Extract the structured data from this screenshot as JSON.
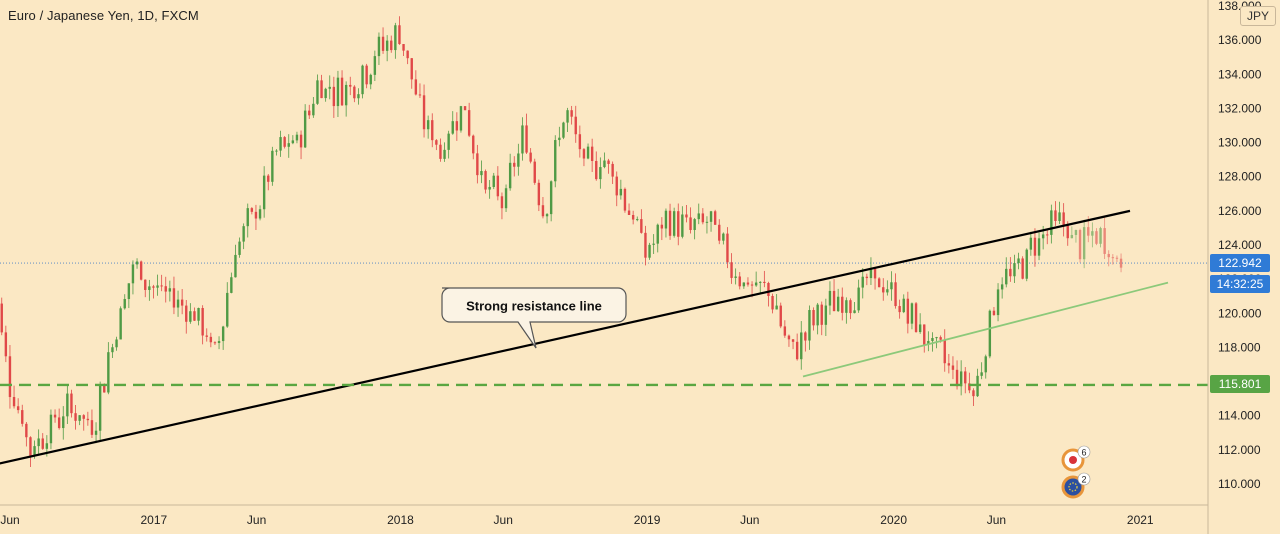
{
  "title": "Euro / Japanese Yen, 1D, FXCM",
  "currency": "JPY",
  "colors": {
    "background": "#fbe8c4",
    "up": "#4f9a45",
    "down": "#e04848",
    "resistance": "#000000",
    "support_dashed": "#5aa641",
    "channel": "#8cc97a",
    "price_label": "#2f7bd6",
    "level_label": "#58a445"
  },
  "price_labels": {
    "last_price": "122.942",
    "countdown": "14:32:25",
    "support_level": "115.801"
  },
  "annotation": {
    "text": "Strong resistance line"
  },
  "badges": [
    {
      "count": "6",
      "icon": "japan-flag-icon"
    },
    {
      "count": "2",
      "icon": "eu-flag-icon"
    }
  ],
  "chart_data": {
    "type": "candlestick",
    "title": "Euro / Japanese Yen, 1D, FXCM",
    "ylim": [
      109,
      138.5
    ],
    "y_ticks": [
      "110.000",
      "112.000",
      "114.000",
      "116.000",
      "118.000",
      "120.000",
      "122.000",
      "124.000",
      "126.000",
      "128.000",
      "130.000",
      "132.000",
      "134.000",
      "136.000",
      "138.000"
    ],
    "x_ticks": [
      {
        "label": "Jun",
        "date": "2016-06"
      },
      {
        "label": "2017",
        "date": "2017-01"
      },
      {
        "label": "Jun",
        "date": "2017-06"
      },
      {
        "label": "2018",
        "date": "2018-01"
      },
      {
        "label": "Jun",
        "date": "2018-06"
      },
      {
        "label": "2019",
        "date": "2019-01"
      },
      {
        "label": "Jun",
        "date": "2019-06"
      },
      {
        "label": "2020",
        "date": "2020-01"
      },
      {
        "label": "Jun",
        "date": "2020-06"
      },
      {
        "label": "2021",
        "date": "2021-01"
      }
    ],
    "price_path": [
      [
        "2016-05",
        123.5
      ],
      [
        "2016-06",
        116.0
      ],
      [
        "2016-07",
        112.0
      ],
      [
        "2016-08",
        113.5
      ],
      [
        "2016-09",
        114.5
      ],
      [
        "2016-10",
        113.2
      ],
      [
        "2016-11",
        118.5
      ],
      [
        "2016-12",
        122.8
      ],
      [
        "2017-01",
        121.5
      ],
      [
        "2017-02",
        120.8
      ],
      [
        "2017-03",
        120.0
      ],
      [
        "2017-04",
        117.5
      ],
      [
        "2017-05",
        124.0
      ],
      [
        "2017-06",
        126.0
      ],
      [
        "2017-07",
        129.5
      ],
      [
        "2017-08",
        130.0
      ],
      [
        "2017-09",
        133.5
      ],
      [
        "2017-10",
        133.0
      ],
      [
        "2017-11",
        133.8
      ],
      [
        "2017-12",
        135.5
      ],
      [
        "2018-01",
        136.5
      ],
      [
        "2018-02",
        131.5
      ],
      [
        "2018-03",
        129.5
      ],
      [
        "2018-04",
        132.5
      ],
      [
        "2018-05",
        127.5
      ],
      [
        "2018-06",
        126.5
      ],
      [
        "2018-07",
        130.5
      ],
      [
        "2018-08",
        126.0
      ],
      [
        "2018-09",
        132.0
      ],
      [
        "2018-10",
        128.5
      ],
      [
        "2018-11",
        129.0
      ],
      [
        "2018-12",
        126.5
      ],
      [
        "2019-01",
        123.5
      ],
      [
        "2019-02",
        125.5
      ],
      [
        "2019-03",
        125.0
      ],
      [
        "2019-04",
        125.5
      ],
      [
        "2019-05",
        123.0
      ],
      [
        "2019-06",
        121.5
      ],
      [
        "2019-07",
        121.2
      ],
      [
        "2019-08",
        117.5
      ],
      [
        "2019-09",
        119.5
      ],
      [
        "2019-10",
        120.5
      ],
      [
        "2019-11",
        121.0
      ],
      [
        "2019-12",
        122.0
      ],
      [
        "2020-01",
        121.0
      ],
      [
        "2020-02",
        119.5
      ],
      [
        "2020-03",
        118.0
      ],
      [
        "2020-04",
        116.5
      ],
      [
        "2020-05",
        115.5
      ],
      [
        "2020-06",
        121.5
      ],
      [
        "2020-07",
        122.5
      ],
      [
        "2020-08",
        124.5
      ],
      [
        "2020-09",
        125.5
      ],
      [
        "2020-10",
        124.0
      ],
      [
        "2020-11",
        124.5
      ],
      [
        "2020-12",
        122.9
      ]
    ],
    "lines": {
      "resistance": {
        "from": [
          "2016-05",
          111.2
        ],
        "to": [
          "2020-12",
          126.0
        ]
      },
      "support_horizontal": 115.801,
      "rising_channel": {
        "from": [
          "2019-08",
          116.3
        ],
        "to": [
          "2020-12",
          121.8
        ]
      }
    },
    "last_price": 122.942
  }
}
